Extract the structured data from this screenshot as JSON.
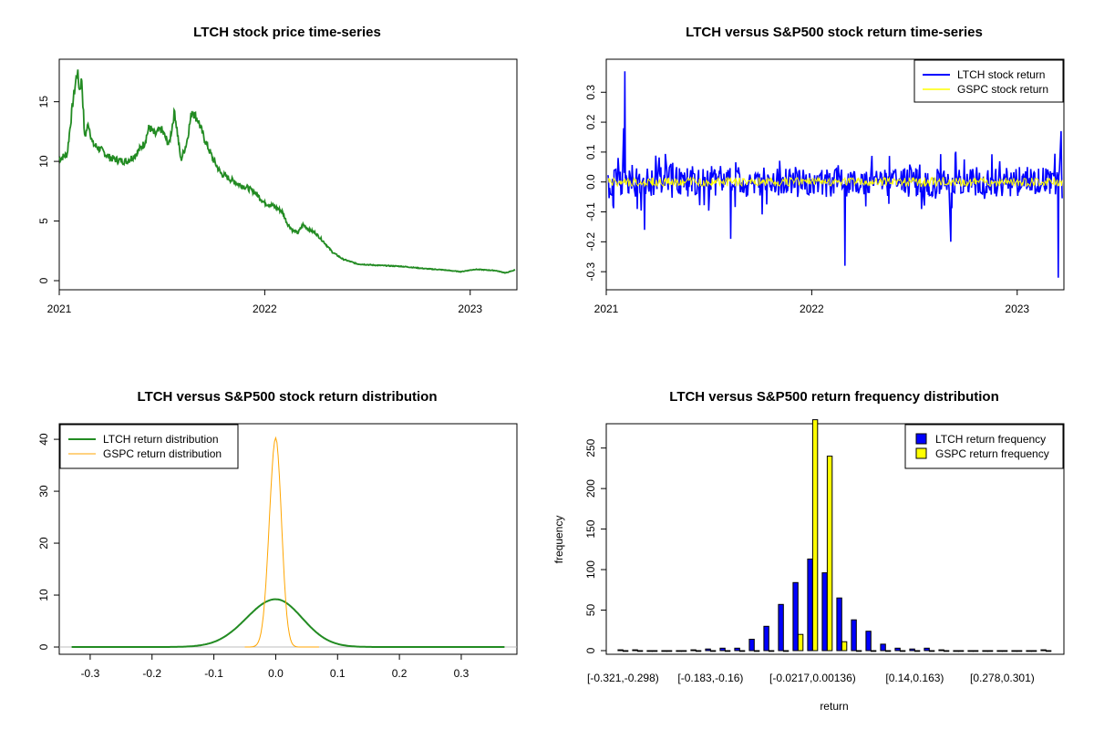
{
  "colors": {
    "ltch_price": "#228B22",
    "ltch_return": "#0000FF",
    "gspc_return": "#FFFF00",
    "ltch_density": "#228B22",
    "gspc_density": "#FFA500",
    "ltch_bar": "#0000FF",
    "gspc_bar": "#FFFF00"
  },
  "chart_data": [
    {
      "id": "price",
      "type": "line",
      "title": "LTCH stock price time-series",
      "xlabel": "",
      "ylabel": "",
      "x_ticks": [
        "2021",
        "2022",
        "2023"
      ],
      "y_ticks": [
        0,
        5,
        10,
        15
      ],
      "xlim": [
        "2021-01-01",
        "2023-03-25"
      ],
      "ylim": [
        0,
        17.8
      ],
      "series": [
        {
          "color": "#228B22",
          "points": [
            [
              "2021-01-01",
              10.2
            ],
            [
              "2021-01-15",
              10.6
            ],
            [
              "2021-01-25",
              14.9
            ],
            [
              "2021-02-02",
              17.6
            ],
            [
              "2021-02-06",
              16.0
            ],
            [
              "2021-02-10",
              16.9
            ],
            [
              "2021-02-15",
              12.0
            ],
            [
              "2021-02-22",
              13.2
            ],
            [
              "2021-03-01",
              11.5
            ],
            [
              "2021-03-15",
              11.0
            ],
            [
              "2021-04-01",
              10.3
            ],
            [
              "2021-04-15",
              10.1
            ],
            [
              "2021-05-01",
              10.0
            ],
            [
              "2021-05-15",
              10.5
            ],
            [
              "2021-06-01",
              11.5
            ],
            [
              "2021-06-10",
              12.9
            ],
            [
              "2021-06-20",
              12.2
            ],
            [
              "2021-07-01",
              12.7
            ],
            [
              "2021-07-15",
              11.4
            ],
            [
              "2021-07-25",
              14.2
            ],
            [
              "2021-08-05",
              10.1
            ],
            [
              "2021-08-15",
              11.5
            ],
            [
              "2021-08-25",
              14.3
            ],
            [
              "2021-09-05",
              13.4
            ],
            [
              "2021-09-15",
              12.0
            ],
            [
              "2021-10-01",
              10.2
            ],
            [
              "2021-10-15",
              9.0
            ],
            [
              "2021-11-01",
              8.5
            ],
            [
              "2021-11-15",
              8.1
            ],
            [
              "2021-12-01",
              7.8
            ],
            [
              "2021-12-15",
              7.4
            ],
            [
              "2022-01-01",
              6.5
            ],
            [
              "2022-01-15",
              6.3
            ],
            [
              "2022-02-01",
              5.8
            ],
            [
              "2022-02-10",
              4.8
            ],
            [
              "2022-02-20",
              4.2
            ],
            [
              "2022-03-01",
              4.0
            ],
            [
              "2022-03-10",
              4.7
            ],
            [
              "2022-03-20",
              4.3
            ],
            [
              "2022-04-01",
              4.0
            ],
            [
              "2022-04-15",
              3.3
            ],
            [
              "2022-05-01",
              2.4
            ],
            [
              "2022-05-20",
              1.8
            ],
            [
              "2022-06-15",
              1.4
            ],
            [
              "2022-07-15",
              1.3
            ],
            [
              "2022-09-01",
              1.2
            ],
            [
              "2022-10-15",
              1.0
            ],
            [
              "2022-11-15",
              0.9
            ],
            [
              "2022-12-15",
              0.75
            ],
            [
              "2023-01-10",
              0.95
            ],
            [
              "2023-02-15",
              0.85
            ],
            [
              "2023-03-05",
              0.65
            ],
            [
              "2023-03-22",
              0.9
            ]
          ]
        }
      ]
    },
    {
      "id": "returns",
      "type": "line",
      "title": "LTCH versus S&P500 stock return time-series",
      "xlabel": "",
      "ylabel": "",
      "x_ticks": [
        "2021",
        "2022",
        "2023"
      ],
      "y_ticks": [
        -0.3,
        -0.2,
        -0.1,
        0.0,
        0.1,
        0.2,
        0.3
      ],
      "xlim": [
        "2021-01-01",
        "2023-03-25"
      ],
      "ylim": [
        -0.33,
        0.38
      ],
      "legend": {
        "position": "top-right",
        "entries": [
          "LTCH stock return",
          "GSPC stock return"
        ]
      },
      "series": [
        {
          "name": "LTCH stock return",
          "color": "#0000FF",
          "typical_amplitude": 0.05,
          "noted_extremes": [
            [
              "2021-02-03",
              0.37
            ],
            [
              "2021-02-01",
              0.18
            ],
            [
              "2021-03-10",
              -0.16
            ],
            [
              "2021-08-10",
              -0.19
            ],
            [
              "2022-03-01",
              -0.28
            ],
            [
              "2022-09-05",
              -0.2
            ],
            [
              "2023-03-15",
              -0.32
            ],
            [
              "2023-03-20",
              0.17
            ]
          ]
        },
        {
          "name": "GSPC stock return",
          "color": "#FFFF00",
          "typical_amplitude": 0.015
        }
      ]
    },
    {
      "id": "density",
      "type": "line",
      "title": "LTCH versus S&P500 stock return distribution",
      "xlabel": "",
      "ylabel": "",
      "x_ticks": [
        -0.3,
        -0.2,
        -0.1,
        0.0,
        0.1,
        0.2,
        0.3
      ],
      "y_ticks": [
        0,
        10,
        20,
        30,
        40
      ],
      "xlim": [
        -0.35,
        0.39
      ],
      "ylim": [
        -1.4,
        43
      ],
      "legend": {
        "position": "top-left",
        "entries": [
          "LTCH return distribution",
          "GSPC return distribution"
        ]
      },
      "series": [
        {
          "name": "LTCH return distribution",
          "color": "#228B22",
          "peak": 9.2,
          "center": 0.0,
          "sd": 0.045
        },
        {
          "name": "GSPC return distribution",
          "color": "#FFA500",
          "peak": 40.3,
          "center": 0.0,
          "sd": 0.0098
        }
      ]
    },
    {
      "id": "histogram",
      "type": "bar",
      "title": "LTCH versus S&P500 return frequency distribution",
      "xlabel": "return",
      "ylabel": "frequency",
      "categories": [
        "[-0.321,-0.298)",
        "[-0.298,-0.275)",
        "[-0.275,-0.252)",
        "[-0.252,-0.229)",
        "[-0.229,-0.206)",
        "[-0.206,-0.183)",
        "[-0.183,-0.16)",
        "[-0.16,-0.137)",
        "[-0.137,-0.114)",
        "[-0.114,-0.0906)",
        "[-0.0906,-0.0676)",
        "[-0.0676,-0.0447)",
        "[-0.0447,-0.0217)",
        "[-0.0217,0.00136)",
        "[0.00136,0.0243)",
        "[0.0243,0.0473)",
        "[0.0473,0.0703)",
        "[0.0703,0.0932)",
        "[0.0932,0.116)",
        "[0.116,0.14)",
        "[0.14,0.163)",
        "[0.163,0.186)",
        "[0.186,0.209)",
        "[0.209,0.232)",
        "[0.232,0.255)",
        "[0.255,0.278)",
        "[0.278,0.301)",
        "[0.301,0.324)",
        "[0.324,0.347)",
        "[0.347,0.37]"
      ],
      "x_tick_labels": [
        "[-0.321,-0.298)",
        "[-0.183,-0.16)",
        "[-0.0217,0.00136)",
        "[0.14,0.163)",
        "[0.278,0.301)"
      ],
      "x_tick_indices": [
        0,
        6,
        13,
        20,
        26
      ],
      "y_ticks": [
        0,
        50,
        100,
        150,
        200,
        250
      ],
      "ylim": [
        0,
        280
      ],
      "legend": {
        "position": "top-right",
        "entries": [
          "LTCH return frequency",
          "GSPC return frequency"
        ]
      },
      "series": [
        {
          "name": "LTCH return frequency",
          "color": "#0000FF",
          "values": [
            1,
            1,
            0,
            0,
            0,
            1,
            2,
            3,
            3,
            14,
            30,
            57,
            84,
            113,
            96,
            65,
            38,
            24,
            8,
            3,
            2,
            3,
            1,
            0,
            0,
            0,
            0,
            0,
            0,
            1
          ]
        },
        {
          "name": "GSPC return frequency",
          "color": "#FFFF00",
          "values": [
            0,
            0,
            0,
            0,
            0,
            0,
            0,
            0,
            0,
            0,
            0,
            0,
            20,
            285,
            240,
            11,
            0,
            0,
            0,
            0,
            0,
            0,
            0,
            0,
            0,
            0,
            0,
            0,
            0,
            0
          ]
        }
      ]
    }
  ]
}
